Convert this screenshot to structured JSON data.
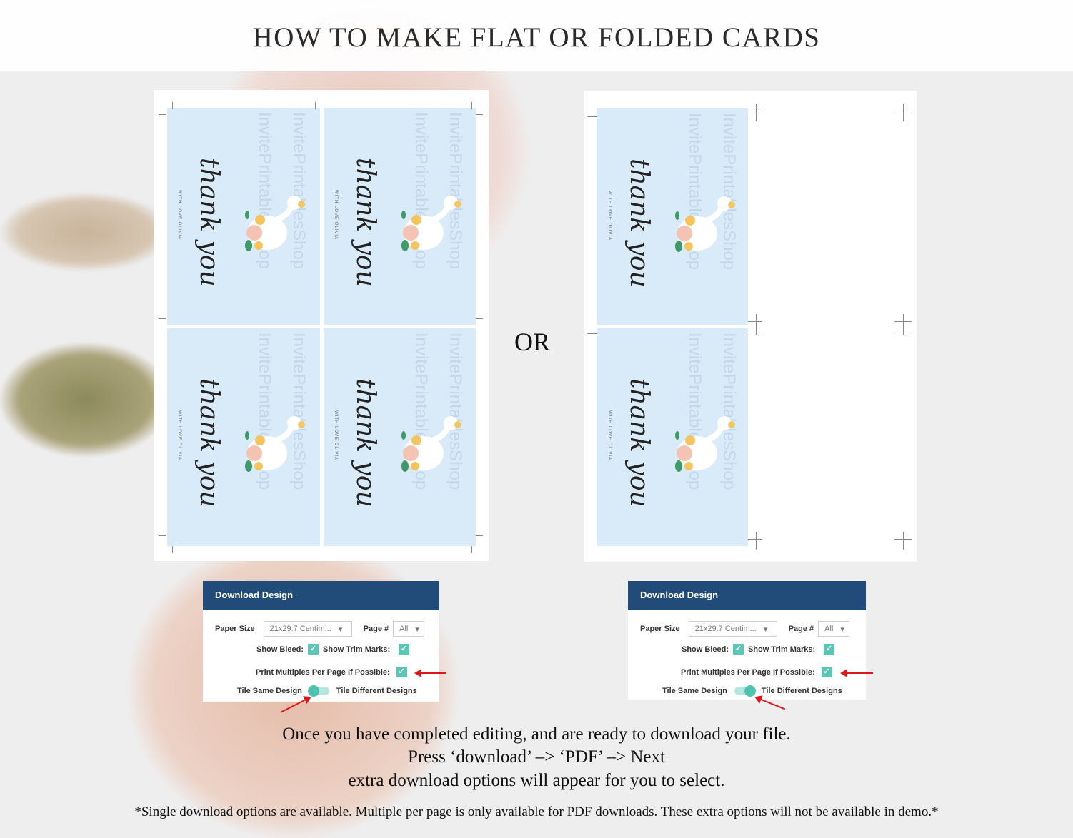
{
  "title": "HOW TO MAKE FLAT OR FOLDED CARDS",
  "or_label": "OR",
  "card": {
    "script": "thank you",
    "signature": "WITH LOVE OLIVIA",
    "watermark": "InvitePrintablesShop"
  },
  "panel": {
    "header": "Download Design",
    "paper_size_label": "Paper Size",
    "paper_size_value": "21x29.7 Centim...",
    "page_label": "Page #",
    "page_value": "All",
    "show_bleed": "Show Bleed:",
    "show_trim": "Show Trim Marks:",
    "print_multiples": "Print Multiples Per Page If Possible:",
    "tile_same": "Tile Same Design",
    "tile_diff": "Tile Different Designs"
  },
  "panels_state": [
    {
      "show_bleed": true,
      "show_trim": true,
      "print_multiples": true,
      "tile": "same"
    },
    {
      "show_bleed": true,
      "show_trim": true,
      "print_multiples": true,
      "tile": "different"
    }
  ],
  "colors": {
    "header": "#214b79",
    "accent": "#5cc6b6",
    "arrow": "#e0151b",
    "card": "#d9eaf9"
  },
  "instructions": {
    "line1": "Once you have completed editing, and are ready to download your file.",
    "line2": "Press ‘download’ –> ‘PDF’ –> Next",
    "line3": "extra download options will appear for you to select.",
    "note": "*Single download options are available. Multiple per page is only available for PDF downloads. These extra options will not be available in demo.*"
  }
}
